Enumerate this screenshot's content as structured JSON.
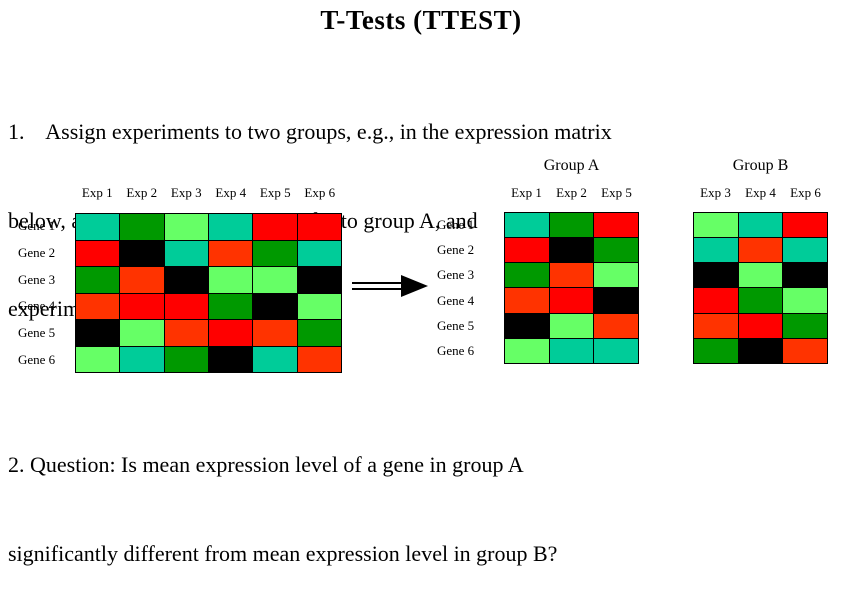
{
  "title": "T-Tests (TTEST)",
  "step1": {
    "lines": [
      "1.    Assign experiments to two groups, e.g., in the expression matrix",
      "below, assign Experiments 1, 2 and 5 to group A, and",
      "experiments 3, 4 and 6 to group B."
    ]
  },
  "question": {
    "lines": [
      "2. Question: Is mean expression level of a gene in group A",
      "significantly different from mean expression level in group B?"
    ]
  },
  "colors": {
    "teal": "#00CC99",
    "green": "#009900",
    "lightgreen": "#66FF66",
    "red": "#FF0000",
    "orangered": "#FF3300",
    "black": "#000000"
  },
  "main_matrix": {
    "col_headers": [
      "Exp 1",
      "Exp 2",
      "Exp 3",
      "Exp 4",
      "Exp 5",
      "Exp 6"
    ],
    "row_headers": [
      "Gene 1",
      "Gene 2",
      "Gene 3",
      "Gene 4",
      "Gene 5",
      "Gene 6"
    ],
    "cells": [
      [
        "teal",
        "green",
        "lightgreen",
        "teal",
        "red",
        "red"
      ],
      [
        "red",
        "black",
        "teal",
        "orangered",
        "green",
        "teal"
      ],
      [
        "green",
        "orangered",
        "black",
        "lightgreen",
        "lightgreen",
        "black"
      ],
      [
        "orangered",
        "red",
        "red",
        "green",
        "black",
        "lightgreen"
      ],
      [
        "black",
        "lightgreen",
        "orangered",
        "red",
        "orangered",
        "green"
      ],
      [
        "lightgreen",
        "teal",
        "green",
        "black",
        "teal",
        "orangered"
      ]
    ]
  },
  "group_a": {
    "title": "Group A",
    "col_headers": [
      "Exp 1",
      "Exp 2",
      "Exp 5"
    ],
    "row_headers": [
      "Gene 1",
      "Gene 2",
      "Gene 3",
      "Gene 4",
      "Gene 5",
      "Gene 6"
    ],
    "cells": [
      [
        "teal",
        "green",
        "red"
      ],
      [
        "red",
        "black",
        "green"
      ],
      [
        "green",
        "orangered",
        "lightgreen"
      ],
      [
        "orangered",
        "red",
        "black"
      ],
      [
        "black",
        "lightgreen",
        "orangered"
      ],
      [
        "lightgreen",
        "teal",
        "teal"
      ]
    ]
  },
  "group_b": {
    "title": "Group B",
    "col_headers": [
      "Exp 3",
      "Exp 4",
      "Exp 6"
    ],
    "cells": [
      [
        "lightgreen",
        "teal",
        "red"
      ],
      [
        "teal",
        "orangered",
        "teal"
      ],
      [
        "black",
        "lightgreen",
        "black"
      ],
      [
        "red",
        "green",
        "lightgreen"
      ],
      [
        "orangered",
        "red",
        "green"
      ],
      [
        "green",
        "black",
        "orangered"
      ]
    ]
  },
  "arrow": {
    "name": "right-arrow",
    "direction": "right"
  }
}
